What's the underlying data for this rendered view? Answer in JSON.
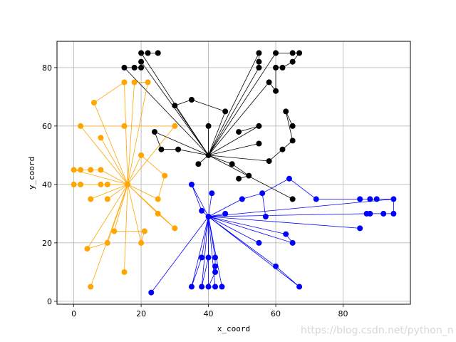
{
  "chart_data": {
    "type": "scatter",
    "xlabel": "x_coord",
    "ylabel": "y_coord",
    "xlim": [
      -5,
      100
    ],
    "ylim": [
      -1,
      89
    ],
    "xticks": [
      0,
      20,
      40,
      60,
      80
    ],
    "yticks": [
      0,
      20,
      40,
      60,
      80
    ],
    "grid": true,
    "watermark": "https://blog.csdn.net/python_n",
    "series": [
      {
        "color": "#000000",
        "center": [
          40,
          50
        ],
        "points": [
          [
            20,
            85
          ],
          [
            22,
            85
          ],
          [
            25,
            85
          ],
          [
            20,
            82
          ],
          [
            20,
            80
          ],
          [
            18,
            80
          ],
          [
            15,
            80
          ],
          [
            55,
            85
          ],
          [
            60,
            85
          ],
          [
            65,
            85
          ],
          [
            67,
            85
          ],
          [
            55,
            82
          ],
          [
            65,
            82
          ],
          [
            55,
            80
          ],
          [
            60,
            80
          ],
          [
            62,
            80
          ],
          [
            58,
            75
          ],
          [
            60,
            72
          ],
          [
            30,
            67
          ],
          [
            35,
            69
          ],
          [
            45,
            65
          ],
          [
            40,
            60
          ],
          [
            63,
            65
          ],
          [
            65,
            60
          ],
          [
            55,
            60
          ],
          [
            49,
            58
          ],
          [
            55,
            54
          ],
          [
            62,
            52
          ],
          [
            65,
            55
          ],
          [
            24,
            58
          ],
          [
            26,
            52
          ],
          [
            31,
            52
          ],
          [
            37,
            47
          ],
          [
            47,
            47
          ],
          [
            52,
            43
          ],
          [
            49,
            42
          ],
          [
            58,
            48
          ],
          [
            65,
            35
          ]
        ],
        "paths": [
          [
            [
              40,
              50
            ],
            [
              20,
              85
            ],
            [
              22,
              85
            ],
            [
              25,
              85
            ]
          ],
          [
            [
              40,
              50
            ],
            [
              20,
              82
            ],
            [
              20,
              80
            ],
            [
              18,
              80
            ],
            [
              15,
              80
            ],
            [
              40,
              50
            ]
          ],
          [
            [
              40,
              50
            ],
            [
              55,
              85
            ],
            [
              55,
              82
            ],
            [
              55,
              80
            ],
            [
              40,
              50
            ]
          ],
          [
            [
              40,
              50
            ],
            [
              60,
              85
            ],
            [
              65,
              85
            ],
            [
              67,
              85
            ],
            [
              65,
              82
            ],
            [
              62,
              80
            ],
            [
              60,
              80
            ],
            [
              60,
              72
            ],
            [
              58,
              75
            ],
            [
              40,
              50
            ]
          ],
          [
            [
              40,
              50
            ],
            [
              30,
              67
            ],
            [
              35,
              69
            ],
            [
              45,
              65
            ],
            [
              40,
              50
            ]
          ],
          [
            [
              40,
              50
            ],
            [
              40,
              60
            ]
          ],
          [
            [
              40,
              50
            ],
            [
              55,
              60
            ],
            [
              49,
              58
            ]
          ],
          [
            [
              40,
              50
            ],
            [
              55,
              54
            ]
          ],
          [
            [
              40,
              50
            ],
            [
              58,
              48
            ],
            [
              62,
              52
            ],
            [
              65,
              55
            ],
            [
              63,
              65
            ],
            [
              65,
              60
            ]
          ],
          [
            [
              40,
              50
            ],
            [
              31,
              52
            ],
            [
              26,
              52
            ],
            [
              24,
              58
            ],
            [
              40,
              50
            ]
          ],
          [
            [
              40,
              50
            ],
            [
              37,
              47
            ],
            [
              40,
              50
            ]
          ],
          [
            [
              40,
              50
            ],
            [
              47,
              47
            ],
            [
              52,
              43
            ],
            [
              49,
              42
            ]
          ],
          [
            [
              40,
              50
            ],
            [
              65,
              35
            ]
          ]
        ]
      },
      {
        "color": "#ffa500",
        "center": [
          16,
          40
        ],
        "points": [
          [
            15,
            75
          ],
          [
            18,
            75
          ],
          [
            22,
            75
          ],
          [
            6,
            68
          ],
          [
            2,
            60
          ],
          [
            15,
            60
          ],
          [
            30,
            60
          ],
          [
            8,
            56
          ],
          [
            20,
            50
          ],
          [
            0,
            45
          ],
          [
            2,
            45
          ],
          [
            5,
            45
          ],
          [
            8,
            45
          ],
          [
            0,
            40
          ],
          [
            2,
            40
          ],
          [
            8,
            40
          ],
          [
            10,
            40
          ],
          [
            5,
            35
          ],
          [
            10,
            35
          ],
          [
            25,
            35
          ],
          [
            27,
            43
          ],
          [
            25,
            30
          ],
          [
            30,
            25
          ],
          [
            12,
            24
          ],
          [
            21,
            24
          ],
          [
            10,
            20
          ],
          [
            20,
            20
          ],
          [
            4,
            18
          ],
          [
            15,
            10
          ],
          [
            5,
            5
          ]
        ],
        "paths": [
          [
            [
              16,
              40
            ],
            [
              15,
              75
            ],
            [
              6,
              68
            ],
            [
              16,
              40
            ]
          ],
          [
            [
              16,
              40
            ],
            [
              18,
              75
            ],
            [
              22,
              75
            ],
            [
              16,
              40
            ]
          ],
          [
            [
              16,
              40
            ],
            [
              2,
              60
            ],
            [
              15,
              60
            ],
            [
              30,
              60
            ],
            [
              16,
              40
            ]
          ],
          [
            [
              16,
              40
            ],
            [
              8,
              56
            ],
            [
              16,
              40
            ]
          ],
          [
            [
              16,
              40
            ],
            [
              20,
              50
            ],
            [
              27,
              43
            ],
            [
              25,
              35
            ],
            [
              16,
              40
            ]
          ],
          [
            [
              16,
              40
            ],
            [
              0,
              45
            ],
            [
              2,
              45
            ],
            [
              5,
              45
            ],
            [
              8,
              45
            ],
            [
              16,
              40
            ]
          ],
          [
            [
              16,
              40
            ],
            [
              0,
              40
            ],
            [
              2,
              40
            ],
            [
              16,
              40
            ]
          ],
          [
            [
              16,
              40
            ],
            [
              8,
              40
            ],
            [
              10,
              40
            ],
            [
              16,
              40
            ]
          ],
          [
            [
              16,
              40
            ],
            [
              5,
              35
            ],
            [
              16,
              40
            ]
          ],
          [
            [
              16,
              40
            ],
            [
              10,
              35
            ],
            [
              16,
              40
            ]
          ],
          [
            [
              16,
              40
            ],
            [
              25,
              30
            ],
            [
              30,
              25
            ],
            [
              16,
              40
            ]
          ],
          [
            [
              16,
              40
            ],
            [
              12,
              24
            ],
            [
              21,
              24
            ],
            [
              20,
              20
            ],
            [
              16,
              40
            ]
          ],
          [
            [
              16,
              40
            ],
            [
              10,
              20
            ],
            [
              4,
              18
            ],
            [
              16,
              40
            ]
          ],
          [
            [
              16,
              40
            ],
            [
              15,
              10
            ],
            [
              16,
              40
            ]
          ],
          [
            [
              16,
              40
            ],
            [
              5,
              5
            ],
            [
              16,
              40
            ]
          ]
        ]
      },
      {
        "color": "#0000ff",
        "center": [
          40,
          29
        ],
        "points": [
          [
            35,
            40
          ],
          [
            41,
            37
          ],
          [
            38,
            31
          ],
          [
            45,
            30
          ],
          [
            50,
            35
          ],
          [
            56,
            37
          ],
          [
            57,
            29
          ],
          [
            64,
            42
          ],
          [
            72,
            35
          ],
          [
            85,
            35
          ],
          [
            88,
            35
          ],
          [
            90,
            35
          ],
          [
            95,
            35
          ],
          [
            87,
            30
          ],
          [
            88,
            30
          ],
          [
            92,
            30
          ],
          [
            95,
            30
          ],
          [
            85,
            25
          ],
          [
            63,
            23
          ],
          [
            65,
            20
          ],
          [
            55,
            20
          ],
          [
            60,
            12
          ],
          [
            67,
            5
          ],
          [
            38,
            15
          ],
          [
            40,
            15
          ],
          [
            42,
            15
          ],
          [
            42,
            12
          ],
          [
            42,
            10
          ],
          [
            35,
            5
          ],
          [
            38,
            5
          ],
          [
            40,
            5
          ],
          [
            42,
            5
          ],
          [
            44,
            5
          ],
          [
            23,
            3
          ]
        ],
        "paths": [
          [
            [
              40,
              29
            ],
            [
              35,
              40
            ],
            [
              38,
              31
            ],
            [
              40,
              29
            ]
          ],
          [
            [
              40,
              29
            ],
            [
              41,
              37
            ]
          ],
          [
            [
              40,
              29
            ],
            [
              45,
              30
            ]
          ],
          [
            [
              40,
              29
            ],
            [
              50,
              35
            ],
            [
              56,
              37
            ],
            [
              57,
              29
            ],
            [
              56,
              37
            ],
            [
              64,
              42
            ],
            [
              72,
              35
            ],
            [
              85,
              35
            ],
            [
              88,
              35
            ],
            [
              90,
              35
            ],
            [
              95,
              35
            ],
            [
              40,
              29
            ]
          ],
          [
            [
              40,
              29
            ],
            [
              87,
              30
            ],
            [
              88,
              30
            ],
            [
              92,
              30
            ],
            [
              95,
              30
            ],
            [
              95,
              35
            ]
          ],
          [
            [
              40,
              29
            ],
            [
              85,
              25
            ]
          ],
          [
            [
              40,
              29
            ],
            [
              63,
              23
            ],
            [
              65,
              20
            ],
            [
              40,
              29
            ]
          ],
          [
            [
              40,
              29
            ],
            [
              55,
              20
            ],
            [
              40,
              29
            ]
          ],
          [
            [
              40,
              29
            ],
            [
              60,
              12
            ],
            [
              67,
              5
            ],
            [
              40,
              29
            ]
          ],
          [
            [
              40,
              29
            ],
            [
              38,
              15
            ],
            [
              35,
              5
            ],
            [
              40,
              29
            ]
          ],
          [
            [
              40,
              29
            ],
            [
              40,
              15
            ],
            [
              38,
              5
            ],
            [
              40,
              29
            ]
          ],
          [
            [
              40,
              29
            ],
            [
              42,
              15
            ],
            [
              42,
              12
            ],
            [
              42,
              10
            ],
            [
              40,
              5
            ],
            [
              40,
              29
            ]
          ],
          [
            [
              40,
              29
            ],
            [
              42,
              5
            ],
            [
              40,
              29
            ]
          ],
          [
            [
              40,
              29
            ],
            [
              44,
              5
            ],
            [
              40,
              29
            ]
          ],
          [
            [
              40,
              29
            ],
            [
              23,
              3
            ],
            [
              40,
              29
            ]
          ]
        ]
      }
    ]
  }
}
